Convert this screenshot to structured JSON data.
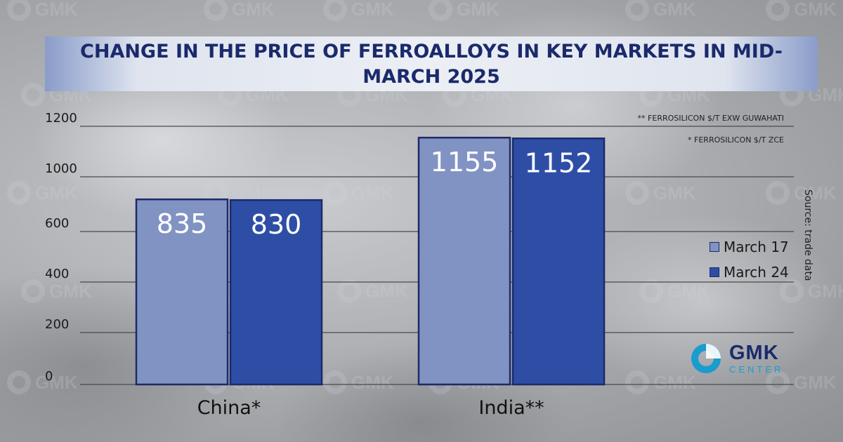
{
  "title": "CHANGE IN THE PRICE OF FERROALLOYS IN KEY MARKETS IN MID-MARCH 2025",
  "notes": [
    "** FERROSILICON $/T EXW GUWAHATI",
    "* FERROSILICON $/T ZCE"
  ],
  "source": "Source: trade data",
  "logo": {
    "main": "GMK",
    "sub": "CENTER"
  },
  "colors": {
    "series_1": "#8193c3",
    "series_2": "#2e4ea6",
    "bar_border": "#1c2a6a",
    "title": "#1a2a6b",
    "grid": "#4a4a4a"
  },
  "chart_data": {
    "type": "bar",
    "title": "CHANGE IN THE PRICE OF FERROALLOYS IN KEY MARKETS IN MID-MARCH 2025",
    "categories": [
      "China*",
      "India**"
    ],
    "series": [
      {
        "name": "March 17",
        "values": [
          835,
          1155
        ]
      },
      {
        "name": "March 24",
        "values": [
          830,
          1152
        ]
      }
    ],
    "y_ticks": [
      0,
      200,
      400,
      600,
      1000,
      1200
    ],
    "grid": true,
    "legend_position": "right",
    "xlabel": "",
    "ylabel": ""
  }
}
